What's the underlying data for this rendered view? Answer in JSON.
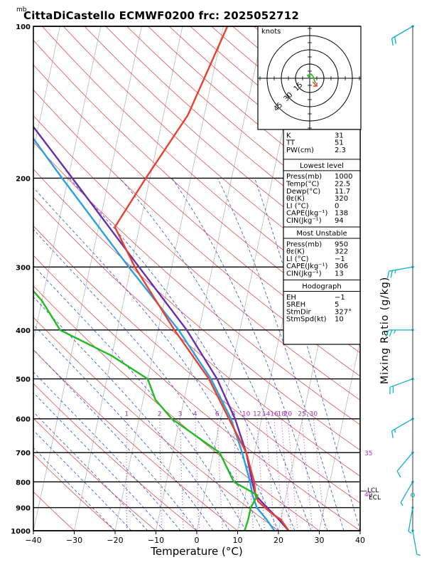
{
  "chart_data": {
    "type": "line",
    "title": "CittaDiCastello ECMWF0200  frc: 2025052712",
    "ylabel": "mb",
    "xlabel": "Temperature (°C)",
    "right_label": "Mixing Ratio  (g/kg)",
    "x_ticks": [
      -40,
      -30,
      -20,
      -10,
      0,
      10,
      20,
      30,
      40
    ],
    "y_ticks": [
      100,
      200,
      300,
      400,
      500,
      600,
      700,
      800,
      900,
      1000
    ],
    "xlim": [
      -40,
      40
    ],
    "ylim": [
      1000,
      100
    ],
    "skew_per_decade": 26.5,
    "mixing_ratio_labels": [
      {
        "text": "1",
        "value": 1
      },
      {
        "text": "2",
        "value": 2
      },
      {
        "text": "3",
        "value": 3
      },
      {
        "text": "4",
        "value": 4
      },
      {
        "text": "6",
        "value": 6
      },
      {
        "text": "8",
        "value": 8
      },
      {
        "text": "10",
        "value": 10
      },
      {
        "text": "12",
        "value": 12
      },
      {
        "text": "14",
        "value": 14
      },
      {
        "text": "16",
        "value": 16
      },
      {
        "text": "18",
        "value": 18
      },
      {
        "text": "20",
        "value": 20
      },
      {
        "text": "25",
        "value": 25
      },
      {
        "text": "30",
        "value": 30
      }
    ],
    "right_numbers": [
      {
        "text": "35",
        "pressure": 700
      },
      {
        "text": "40",
        "pressure": 845
      }
    ],
    "lcl_label": "LCL",
    "lfc_label": "ECL",
    "lcl_pressure": 845,
    "series": [
      {
        "key": "temperature",
        "color": "#e8402f",
        "points": [
          [
            1000,
            22.5
          ],
          [
            950,
            20
          ],
          [
            925,
            17.5
          ],
          [
            900,
            15.5
          ],
          [
            875,
            13.5
          ],
          [
            850,
            12.5
          ],
          [
            800,
            11.5
          ],
          [
            700,
            8
          ],
          [
            600,
            2
          ],
          [
            500,
            -5
          ],
          [
            400,
            -16
          ],
          [
            300,
            -29
          ],
          [
            250,
            -36
          ],
          [
            200,
            -31
          ],
          [
            150,
            -24
          ],
          [
            100,
            -19
          ]
        ]
      },
      {
        "key": "dewpoint",
        "color": "#22bb22",
        "points": [
          [
            1000,
            11.7
          ],
          [
            950,
            12
          ],
          [
            900,
            12
          ],
          [
            850,
            13
          ],
          [
            800,
            6.5
          ],
          [
            700,
            1.5
          ],
          [
            650,
            -5
          ],
          [
            600,
            -12
          ],
          [
            550,
            -17
          ],
          [
            500,
            -20
          ],
          [
            450,
            -30
          ],
          [
            400,
            -44
          ],
          [
            350,
            -50
          ],
          [
            300,
            -59
          ],
          [
            250,
            -68
          ],
          [
            200,
            -69
          ],
          [
            150,
            -72
          ],
          [
            100,
            -76
          ]
        ]
      },
      {
        "key": "parcel",
        "color": "#6a2fb0",
        "points": [
          [
            1000,
            22.5
          ],
          [
            950,
            19.5
          ],
          [
            900,
            16
          ],
          [
            850,
            12.5
          ],
          [
            800,
            11
          ],
          [
            700,
            8
          ],
          [
            600,
            3.5
          ],
          [
            500,
            -3
          ],
          [
            400,
            -13
          ],
          [
            300,
            -28
          ],
          [
            200,
            -49
          ],
          [
            150,
            -64
          ],
          [
            100,
            -76
          ]
        ]
      },
      {
        "key": "virtual_parcel",
        "color": "#2aa0e0",
        "points": [
          [
            1000,
            19
          ],
          [
            950,
            16.5
          ],
          [
            900,
            13.5
          ],
          [
            850,
            11.8
          ],
          [
            800,
            10.5
          ],
          [
            700,
            7
          ],
          [
            600,
            2.5
          ],
          [
            500,
            -4.5
          ],
          [
            400,
            -15
          ],
          [
            300,
            -30.5
          ],
          [
            200,
            -51.5
          ],
          [
            150,
            -66
          ],
          [
            100,
            -79
          ]
        ]
      }
    ]
  },
  "hodograph": {
    "title": "knots",
    "ring_labels": [
      "15",
      "30",
      "45"
    ]
  },
  "indices": {
    "rows": [
      {
        "label": "K",
        "value": "31"
      },
      {
        "label": "TT",
        "value": "51"
      },
      {
        "label": "PW(cm)",
        "value": "2.3"
      }
    ]
  },
  "lowest_level": {
    "title": "Lowest level",
    "rows": [
      {
        "label": "Press(mb)",
        "value": "1000"
      },
      {
        "label": "Temp(°C)",
        "value": "22.5"
      },
      {
        "label": "Dewp(°C)",
        "value": "11.7"
      },
      {
        "label": "θε(K)",
        "value": "320"
      },
      {
        "label": "LI (°C)",
        "value": "0"
      },
      {
        "label": "CAPE(Jkg⁻¹)",
        "value": "138"
      },
      {
        "label": "CIN(Jkg⁻¹)",
        "value": "94"
      }
    ]
  },
  "most_unstable": {
    "title": "Most Unstable",
    "rows": [
      {
        "label": "Press(mb)",
        "value": "950"
      },
      {
        "label": "θε(K)",
        "value": "322"
      },
      {
        "label": "LI (°C)",
        "value": "−1"
      },
      {
        "label": "CAPE(Jkg⁻¹)",
        "value": "306"
      },
      {
        "label": "CIN(Jkg⁻¹)",
        "value": "13"
      }
    ]
  },
  "hodo_params": {
    "title": "Hodograph",
    "rows": [
      {
        "label": "EH",
        "value": "−1"
      },
      {
        "label": "SREH",
        "value": "5"
      },
      {
        "label": "StmDir",
        "value": "327°"
      },
      {
        "label": "StmSpd(kt)",
        "value": "10"
      }
    ]
  },
  "wind_barbs": [
    {
      "pressure": 100,
      "dir": 300,
      "speed": 20
    },
    {
      "pressure": 300,
      "dir": 280,
      "speed": 25
    },
    {
      "pressure": 400,
      "dir": 270,
      "speed": 25
    },
    {
      "pressure": 500,
      "dir": 290,
      "speed": 20
    },
    {
      "pressure": 600,
      "dir": 300,
      "speed": 15
    },
    {
      "pressure": 700,
      "dir": 320,
      "speed": 10
    },
    {
      "pressure": 800,
      "dir": 330,
      "speed": 5
    },
    {
      "pressure": 850,
      "dir": 0,
      "speed": 0
    },
    {
      "pressure": 900,
      "dir": 350,
      "speed": 5
    },
    {
      "pressure": 1000,
      "dir": 10,
      "speed": 5
    }
  ],
  "colors": {
    "isotherm": "#b8b8b8",
    "dry_adiabat": "#e05050",
    "moist_adiabat": "#3050d8",
    "mixing_ratio": "#a030b0",
    "barb": "#10b0c8"
  }
}
